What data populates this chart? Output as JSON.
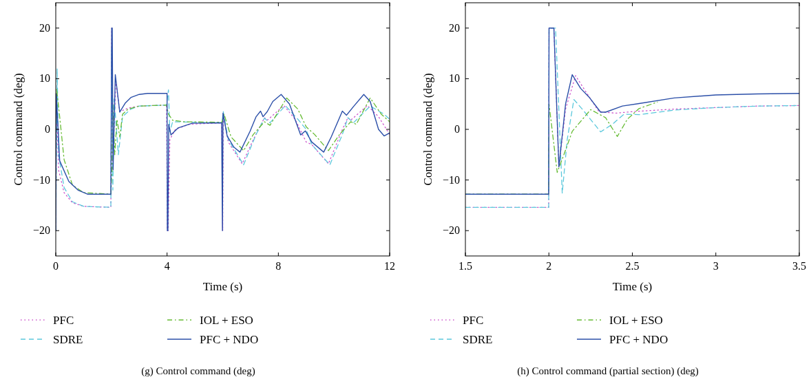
{
  "chart_data": [
    {
      "type": "line",
      "xlabel": "Time (s)",
      "ylabel": "Control command (deg)",
      "xlim": [
        0,
        12
      ],
      "xticks": [
        0,
        4,
        8,
        12
      ],
      "ylim": [
        -25,
        25
      ],
      "yticks": [
        -20,
        -10,
        0,
        10,
        20
      ],
      "grid": false,
      "legend": "bottom",
      "annotations": [
        "(g)  Control command (deg)"
      ],
      "series": [
        {
          "name": "PFC",
          "color": "#cc55cc",
          "line_style": "dotted",
          "x": [
            0,
            0.03,
            0.1,
            0.3,
            0.6,
            1.0,
            1.98,
            2.01,
            2.04,
            2.16,
            2.3,
            2.6,
            3.0,
            3.98,
            4.01,
            4.04,
            4.1,
            4.3,
            4.8,
            5.97,
            6.0,
            6.02,
            6.2,
            6.7,
            7.1,
            7.5,
            7.6,
            8.2,
            8.6,
            9.0,
            9.2,
            9.8,
            10.3,
            10.5,
            10.6,
            11.2,
            11.6,
            12
          ],
          "values": [
            -20,
            5,
            -8,
            -12.5,
            -14.5,
            -15.2,
            -15.4,
            20,
            -8,
            9.5,
            3.5,
            4.2,
            4.6,
            4.8,
            -20,
            -20,
            -2,
            0,
            1,
            1.3,
            -20,
            3,
            -2.5,
            -6.8,
            -2,
            2.3,
            1.8,
            4.7,
            2,
            -2.5,
            -3,
            -6.8,
            0,
            2.3,
            1.8,
            4.7,
            2.5,
            -1
          ]
        },
        {
          "name": "SDRE",
          "color": "#5bc8dc",
          "line_style": "dashed",
          "x": [
            0,
            0.05,
            0.1,
            0.3,
            0.6,
            1.0,
            1.98,
            2.01,
            2.05,
            2.1,
            2.25,
            2.4,
            2.7,
            3.0,
            3.98,
            4.05,
            4.1,
            4.2,
            5.97,
            6.02,
            6.2,
            6.75,
            7.2,
            7.5,
            7.7,
            8.25,
            8.7,
            9.0,
            9.2,
            9.85,
            10.3,
            10.5,
            10.7,
            11.3,
            11.8,
            12
          ],
          "values": [
            -20,
            12,
            -5,
            -11.5,
            -14.3,
            -15.2,
            -15.4,
            16,
            -12,
            6,
            -5,
            2.5,
            4,
            4.6,
            4.8,
            7.8,
            -0.5,
            1.5,
            1.3,
            3.5,
            -2,
            -7,
            -1,
            2.2,
            1.3,
            4.7,
            2,
            0,
            -3,
            -7,
            -1,
            2.3,
            1.3,
            4.6,
            3,
            2
          ]
        },
        {
          "name": "IOL + ESO",
          "color": "#66bb33",
          "line_style": "dashdot",
          "x": [
            0,
            0.03,
            0.15,
            0.3,
            0.6,
            1.0,
            1.98,
            2.02,
            2.05,
            2.12,
            2.2,
            2.3,
            2.4,
            2.6,
            3.0,
            3.98,
            4.05,
            4.2,
            4.6,
            5.97,
            6.05,
            6.3,
            6.75,
            7.1,
            7.5,
            7.7,
            8.3,
            8.7,
            9.0,
            9.3,
            9.8,
            10.2,
            10.6,
            10.8,
            11.3,
            11.7,
            12
          ],
          "values": [
            -5,
            8,
            2,
            -6,
            -11,
            -12.5,
            -12.8,
            -8,
            5,
            -5,
            2,
            -1.5,
            3,
            4,
            4.6,
            4.8,
            3,
            1.8,
            1.5,
            1.4,
            3,
            -1.5,
            -4.2,
            -1,
            1.5,
            0.8,
            6.2,
            4,
            0.5,
            -1,
            -4.2,
            -1,
            1.5,
            1,
            6.2,
            3,
            1.5
          ]
        },
        {
          "name": "PFC + NDO",
          "color": "#2b4fa8",
          "line_style": "solid",
          "x": [
            0,
            0.02,
            0.14,
            0.47,
            0.8,
            1.14,
            1.98,
            2.01,
            2.03,
            2.06,
            2.14,
            2.3,
            2.5,
            2.7,
            3.0,
            3.3,
            4.0,
            4.01,
            4.03,
            4.06,
            4.14,
            4.4,
            4.9,
            5.96,
            5.99,
            6.01,
            6.16,
            6.4,
            6.62,
            6.98,
            7.2,
            7.36,
            7.45,
            7.6,
            7.8,
            8.1,
            8.4,
            8.8,
            8.97,
            9.2,
            9.63,
            9.9,
            10.3,
            10.45,
            10.7,
            11.07,
            11.3,
            11.6,
            11.8,
            12
          ],
          "values": [
            -20,
            7,
            -6.2,
            -10.3,
            -12,
            -12.8,
            -12.8,
            20,
            20,
            -8,
            10.8,
            3.4,
            5.2,
            6.3,
            6.9,
            7.1,
            7.1,
            -20,
            -20,
            1,
            -1.1,
            0.3,
            1.2,
            1.3,
            -20,
            3.2,
            -1.3,
            -3.5,
            -4.5,
            -0.4,
            2.5,
            3.6,
            2.5,
            3.5,
            5.5,
            6.9,
            5,
            -1.1,
            -0.3,
            -2.5,
            -4.5,
            -1.5,
            3.6,
            2.8,
            4.5,
            6.9,
            5.5,
            0,
            -1.3,
            -0.7
          ]
        }
      ]
    },
    {
      "type": "line",
      "xlabel": "Time (s)",
      "ylabel": "Control command (deg)",
      "xlim": [
        1.5,
        3.5
      ],
      "xticks": [
        1.5,
        2,
        2.5,
        3,
        3.5
      ],
      "ylim": [
        -25,
        25
      ],
      "yticks": [
        -20,
        -10,
        0,
        10,
        20
      ],
      "grid": false,
      "legend": "bottom",
      "annotations": [
        "(h)  Control command (partial section) (deg)"
      ],
      "series": [
        {
          "name": "PFC",
          "color": "#cc55cc",
          "line_style": "dotted",
          "x": [
            1.5,
            1.999,
            2.001,
            2.03,
            2.06,
            2.1,
            2.16,
            2.22,
            2.3,
            2.4,
            2.5,
            2.75,
            3.0,
            3.25,
            3.5
          ],
          "values": [
            -15.4,
            -15.4,
            20,
            20,
            -7.5,
            4,
            10.6,
            7.5,
            3.5,
            3.2,
            3.5,
            4,
            4.3,
            4.6,
            4.7
          ]
        },
        {
          "name": "SDRE",
          "color": "#5bc8dc",
          "line_style": "dashed",
          "x": [
            1.5,
            1.999,
            2.001,
            2.04,
            2.08,
            2.11,
            2.15,
            2.2,
            2.31,
            2.38,
            2.45,
            2.54,
            2.75,
            3.0,
            3.25,
            3.5
          ],
          "values": [
            -15.4,
            -15.4,
            20,
            20,
            -12.6,
            -2,
            5.9,
            4,
            -0.5,
            1,
            3,
            2.9,
            3.8,
            4.3,
            4.6,
            4.7
          ]
        },
        {
          "name": "IOL + ESO",
          "color": "#66bb33",
          "line_style": "dashdot",
          "x": [
            1.5,
            1.999,
            2.001,
            2.05,
            2.09,
            2.14,
            2.25,
            2.34,
            2.41,
            2.47,
            2.54,
            2.65
          ],
          "values": [
            -12.8,
            -12.8,
            5,
            -8.5,
            -5,
            -0.4,
            3.9,
            2.3,
            -1.4,
            2,
            4.1,
            5.4
          ]
        },
        {
          "name": "PFC + NDO",
          "color": "#2b4fa8",
          "line_style": "solid",
          "x": [
            1.5,
            1.999,
            2.001,
            2.03,
            2.06,
            2.1,
            2.14,
            2.19,
            2.24,
            2.31,
            2.34,
            2.44,
            2.54,
            2.75,
            3.0,
            3.25,
            3.5
          ],
          "values": [
            -12.8,
            -12.8,
            20,
            20,
            -7.4,
            5,
            10.8,
            8.1,
            6.4,
            3.4,
            3.4,
            4.6,
            5.1,
            6.2,
            6.8,
            7,
            7.1
          ]
        }
      ]
    }
  ]
}
